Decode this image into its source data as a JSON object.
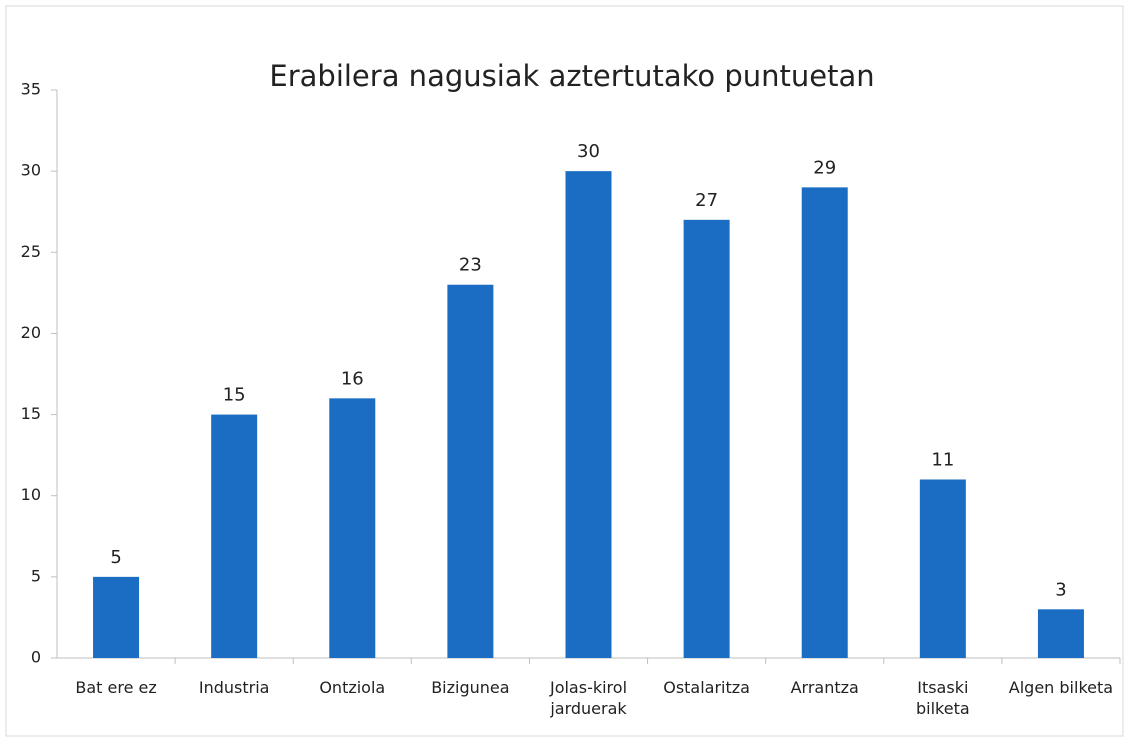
{
  "chart_data": {
    "type": "bar",
    "title": "Erabilera nagusiak aztertutako puntuetan",
    "categories": [
      "Bat ere ez",
      "Industria",
      "Ontziola",
      "Bizigunea",
      "Jolas-kirol\njarduerak",
      "Ostalaritza",
      "Arrantza",
      "Itsaski\nbilketa",
      "Algen bilketa"
    ],
    "values": [
      5,
      15,
      16,
      23,
      30,
      27,
      29,
      11,
      3
    ],
    "color": "#1a6dc2",
    "ylim": [
      0,
      35
    ],
    "yticks": [
      0,
      5,
      10,
      15,
      20,
      25,
      30,
      35
    ],
    "grid": false
  }
}
